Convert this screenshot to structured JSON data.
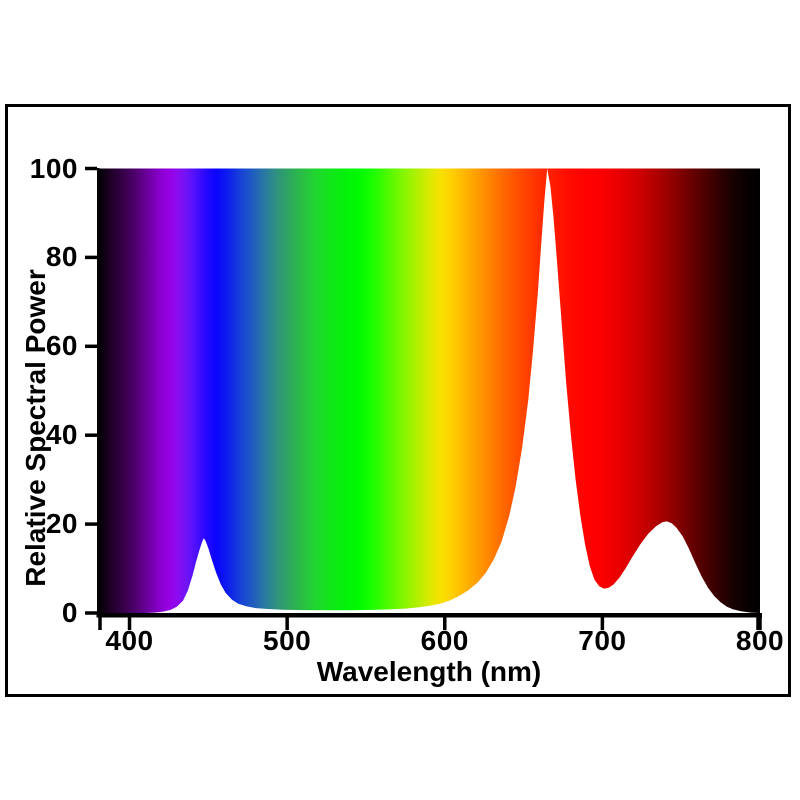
{
  "labels": {
    "y": [
      "100",
      "80",
      "60",
      "40",
      "20",
      "0"
    ],
    "x": [
      "400",
      "500",
      "600",
      "700",
      "800"
    ]
  },
  "chart_data": {
    "type": "area",
    "title": "",
    "xlabel": "Wavelength (nm)",
    "ylabel": "Relative Spectral Power",
    "xlim": [
      380,
      800
    ],
    "ylim": [
      0,
      100
    ],
    "x_ticks": [
      400,
      500,
      600,
      700,
      800
    ],
    "x_edge_ticks": [
      380,
      800
    ],
    "y_ticks": [
      100,
      80,
      60,
      40,
      20,
      0
    ],
    "grid": false,
    "legend": "none",
    "style": "visible-spectrum gradient fills plot background; area under the SPD curve is rendered white",
    "curve_fill_color": "#ffffff",
    "axis_color": "#000000",
    "peaks": [
      {
        "wavelength_nm": 447,
        "relative_power": 16.8
      },
      {
        "wavelength_nm": 665,
        "relative_power": 100
      },
      {
        "wavelength_nm": 741,
        "relative_power": 20.6
      }
    ],
    "series": [
      {
        "name": "Relative spectral power distribution",
        "points": [
          [
            380,
            0
          ],
          [
            410,
            0
          ],
          [
            416,
            0.1
          ],
          [
            421,
            0.3
          ],
          [
            426,
            0.7
          ],
          [
            430,
            1.4
          ],
          [
            434,
            2.8
          ],
          [
            437,
            5
          ],
          [
            440,
            8.5
          ],
          [
            442,
            11.2
          ],
          [
            444,
            13.8
          ],
          [
            446,
            15.9
          ],
          [
            447,
            16.8
          ],
          [
            448,
            16.4
          ],
          [
            450,
            14.6
          ],
          [
            452,
            12.2
          ],
          [
            455,
            9
          ],
          [
            458,
            6.4
          ],
          [
            461,
            4.5
          ],
          [
            465,
            3
          ],
          [
            469,
            2.1
          ],
          [
            474,
            1.5
          ],
          [
            480,
            1.1
          ],
          [
            488,
            0.9
          ],
          [
            497,
            0.75
          ],
          [
            510,
            0.65
          ],
          [
            525,
            0.6
          ],
          [
            540,
            0.62
          ],
          [
            553,
            0.7
          ],
          [
            565,
            0.8
          ],
          [
            575,
            1
          ],
          [
            583,
            1.25
          ],
          [
            590,
            1.6
          ],
          [
            597,
            2.1
          ],
          [
            603,
            2.8
          ],
          [
            609,
            3.8
          ],
          [
            615,
            5.1
          ],
          [
            621,
            6.9
          ],
          [
            626,
            9
          ],
          [
            631,
            12
          ],
          [
            636,
            16
          ],
          [
            641,
            22
          ],
          [
            645,
            28.5
          ],
          [
            649,
            37
          ],
          [
            653,
            48
          ],
          [
            656,
            59
          ],
          [
            659,
            72
          ],
          [
            661,
            82
          ],
          [
            663,
            92
          ],
          [
            665,
            100
          ],
          [
            667,
            96
          ],
          [
            669,
            89
          ],
          [
            671,
            80
          ],
          [
            674,
            66
          ],
          [
            677,
            52
          ],
          [
            680,
            40
          ],
          [
            683,
            30
          ],
          [
            686,
            22
          ],
          [
            689,
            15.5
          ],
          [
            692,
            10.5
          ],
          [
            695,
            7.5
          ],
          [
            698,
            6
          ],
          [
            701,
            5.5
          ],
          [
            704,
            5.7
          ],
          [
            707,
            6.4
          ],
          [
            711,
            8
          ],
          [
            715,
            10.2
          ],
          [
            719,
            12.6
          ],
          [
            724,
            15.4
          ],
          [
            729,
            17.8
          ],
          [
            734,
            19.5
          ],
          [
            738,
            20.4
          ],
          [
            741,
            20.6
          ],
          [
            744,
            20.2
          ],
          [
            747,
            19.2
          ],
          [
            751,
            17.2
          ],
          [
            755,
            14.4
          ],
          [
            759,
            11.2
          ],
          [
            763,
            8.2
          ],
          [
            767,
            5.7
          ],
          [
            771,
            3.8
          ],
          [
            775,
            2.4
          ],
          [
            779,
            1.4
          ],
          [
            783,
            0.8
          ],
          [
            788,
            0.4
          ],
          [
            794,
            0.1
          ],
          [
            800,
            0
          ]
        ]
      }
    ],
    "spectrum_stops": [
      {
        "nm": 380,
        "color": "#000000"
      },
      {
        "nm": 388,
        "color": "#1e0026"
      },
      {
        "nm": 396,
        "color": "#360047"
      },
      {
        "nm": 404,
        "color": "#500070"
      },
      {
        "nm": 412,
        "color": "#6e00a2"
      },
      {
        "nm": 419,
        "color": "#8800cb"
      },
      {
        "nm": 425,
        "color": "#9600e3"
      },
      {
        "nm": 430,
        "color": "#8d0bee"
      },
      {
        "nm": 436,
        "color": "#7114f6"
      },
      {
        "nm": 442,
        "color": "#4d10fc"
      },
      {
        "nm": 448,
        "color": "#2a08ff"
      },
      {
        "nm": 455,
        "color": "#0a04fd"
      },
      {
        "nm": 462,
        "color": "#0c1cee"
      },
      {
        "nm": 470,
        "color": "#163fd9"
      },
      {
        "nm": 478,
        "color": "#205cc0"
      },
      {
        "nm": 486,
        "color": "#2a7aa1"
      },
      {
        "nm": 494,
        "color": "#2f937b"
      },
      {
        "nm": 502,
        "color": "#2ea95d"
      },
      {
        "nm": 510,
        "color": "#29bf44"
      },
      {
        "nm": 518,
        "color": "#21d52f"
      },
      {
        "nm": 527,
        "color": "#12e51b"
      },
      {
        "nm": 536,
        "color": "#05f10b"
      },
      {
        "nm": 545,
        "color": "#00fa00"
      },
      {
        "nm": 553,
        "color": "#16fe00"
      },
      {
        "nm": 561,
        "color": "#3ffb00"
      },
      {
        "nm": 569,
        "color": "#6af800"
      },
      {
        "nm": 577,
        "color": "#95f300"
      },
      {
        "nm": 585,
        "color": "#beee00"
      },
      {
        "nm": 592,
        "color": "#e2e800"
      },
      {
        "nm": 598,
        "color": "#f9e000"
      },
      {
        "nm": 604,
        "color": "#ffd100"
      },
      {
        "nm": 611,
        "color": "#ffbb00"
      },
      {
        "nm": 619,
        "color": "#ffa200"
      },
      {
        "nm": 627,
        "color": "#ff8800"
      },
      {
        "nm": 635,
        "color": "#ff6f00"
      },
      {
        "nm": 643,
        "color": "#ff5800"
      },
      {
        "nm": 651,
        "color": "#ff4300"
      },
      {
        "nm": 659,
        "color": "#ff3000"
      },
      {
        "nm": 667,
        "color": "#ff1f00"
      },
      {
        "nm": 675,
        "color": "#ff1100"
      },
      {
        "nm": 683,
        "color": "#ff0700"
      },
      {
        "nm": 691,
        "color": "#ff0100"
      },
      {
        "nm": 701,
        "color": "#f90000"
      },
      {
        "nm": 712,
        "color": "#e70000"
      },
      {
        "nm": 723,
        "color": "#cf0000"
      },
      {
        "nm": 734,
        "color": "#b10000"
      },
      {
        "nm": 745,
        "color": "#8f0000"
      },
      {
        "nm": 755,
        "color": "#6e0000"
      },
      {
        "nm": 765,
        "color": "#4d0000"
      },
      {
        "nm": 775,
        "color": "#2e0000"
      },
      {
        "nm": 784,
        "color": "#160000"
      },
      {
        "nm": 792,
        "color": "#080000"
      },
      {
        "nm": 800,
        "color": "#000000"
      }
    ]
  }
}
